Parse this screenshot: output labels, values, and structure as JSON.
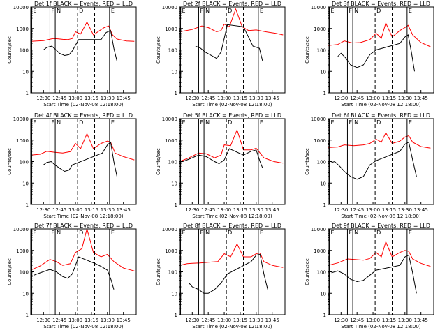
{
  "chart_data": {
    "type": "line",
    "y_scale": "log",
    "ylim": [
      1,
      10000
    ],
    "y_ticks": [
      1,
      10,
      100,
      1000,
      10000
    ],
    "y_tick_labels": [
      "1",
      "10",
      "100",
      "1000",
      "10000"
    ],
    "x_range": [
      "12:18",
      "13:57"
    ],
    "x_ticks": [
      "12:30",
      "12:45",
      "13:00",
      "13:15",
      "13:30",
      "13:45"
    ],
    "ylabel": "Counts/sec",
    "xlabel": "Start Time (02-Nov-08 12:18:00)",
    "legend": {
      "black": "Events",
      "red": "LLD"
    },
    "colors": {
      "events": "#000000",
      "lld": "#ff0000"
    },
    "markers": [
      {
        "label": "E",
        "time": "12:19",
        "style": "solid"
      },
      {
        "label": "F",
        "time": "12:36",
        "style": "solid"
      },
      {
        "label": "N",
        "time": "12:41",
        "style": "solid"
      },
      {
        "label": "D",
        "time": "13:02",
        "style": "dashed"
      },
      {
        "label": "",
        "time": "13:18",
        "style": "dashed"
      },
      {
        "label": "E",
        "time": "13:32",
        "style": "solid"
      }
    ],
    "panels": [
      {
        "title": "Det 1f BLACK = Events, RED = LLD",
        "lld": [
          [
            12.3,
            250
          ],
          [
            12.5,
            270
          ],
          [
            12.65,
            340
          ],
          [
            12.72,
            330
          ],
          [
            12.8,
            310
          ],
          [
            12.88,
            300
          ],
          [
            12.95,
            340
          ],
          [
            13.0,
            700
          ],
          [
            13.08,
            550
          ],
          [
            13.18,
            2000
          ],
          [
            13.28,
            500
          ],
          [
            13.38,
            800
          ],
          [
            13.45,
            1100
          ],
          [
            13.52,
            1300
          ],
          [
            13.58,
            500
          ],
          [
            13.65,
            320
          ],
          [
            13.8,
            260
          ],
          [
            13.92,
            250
          ]
        ],
        "events": [
          [
            12.5,
            100
          ],
          [
            12.55,
            130
          ],
          [
            12.63,
            150
          ],
          [
            12.68,
            110
          ],
          [
            12.75,
            70
          ],
          [
            12.83,
            55
          ],
          [
            12.9,
            60
          ],
          [
            12.95,
            90
          ],
          [
            13.05,
            300
          ],
          [
            13.4,
            300
          ],
          [
            13.48,
            650
          ],
          [
            13.55,
            800
          ],
          [
            13.6,
            120
          ],
          [
            13.65,
            30
          ]
        ]
      },
      {
        "title": "Det 2f BLACK = Events, RED = LLD",
        "lld": [
          [
            12.3,
            700
          ],
          [
            12.5,
            900
          ],
          [
            12.65,
            1300
          ],
          [
            12.75,
            1100
          ],
          [
            12.88,
            700
          ],
          [
            12.95,
            800
          ],
          [
            13.0,
            1600
          ],
          [
            13.08,
            1200
          ],
          [
            13.18,
            8000
          ],
          [
            13.28,
            1200
          ],
          [
            13.38,
            800
          ],
          [
            13.5,
            850
          ],
          [
            13.65,
            700
          ],
          [
            13.8,
            600
          ],
          [
            13.92,
            500
          ]
        ],
        "events": [
          [
            12.55,
            150
          ],
          [
            12.63,
            120
          ],
          [
            12.7,
            80
          ],
          [
            12.8,
            55
          ],
          [
            12.88,
            40
          ],
          [
            12.95,
            80
          ],
          [
            13.05,
            1500
          ],
          [
            13.3,
            1200
          ],
          [
            13.45,
            150
          ],
          [
            13.55,
            120
          ],
          [
            13.6,
            30
          ]
        ]
      },
      {
        "title": "Det 3f BLACK = Events, RED = LLD",
        "lld": [
          [
            12.3,
            160
          ],
          [
            12.45,
            180
          ],
          [
            12.55,
            260
          ],
          [
            12.68,
            210
          ],
          [
            12.8,
            220
          ],
          [
            12.95,
            300
          ],
          [
            13.05,
            600
          ],
          [
            13.13,
            350
          ],
          [
            13.2,
            1800
          ],
          [
            13.3,
            400
          ],
          [
            13.42,
            800
          ],
          [
            13.5,
            1100
          ],
          [
            13.55,
            1400
          ],
          [
            13.62,
            500
          ],
          [
            13.75,
            220
          ],
          [
            13.9,
            140
          ]
        ],
        "events": [
          [
            12.45,
            50
          ],
          [
            12.5,
            70
          ],
          [
            12.58,
            40
          ],
          [
            12.65,
            20
          ],
          [
            12.75,
            15
          ],
          [
            12.85,
            20
          ],
          [
            12.95,
            60
          ],
          [
            13.05,
            100
          ],
          [
            13.42,
            200
          ],
          [
            13.5,
            400
          ],
          [
            13.55,
            500
          ],
          [
            13.6,
            80
          ],
          [
            13.65,
            10
          ]
        ]
      },
      {
        "title": "Det 4f BLACK = Events, RED = LLD",
        "lld": [
          [
            12.3,
            200
          ],
          [
            12.45,
            220
          ],
          [
            12.55,
            300
          ],
          [
            12.68,
            270
          ],
          [
            12.8,
            250
          ],
          [
            12.92,
            290
          ],
          [
            13.0,
            700
          ],
          [
            13.08,
            400
          ],
          [
            13.18,
            2000
          ],
          [
            13.28,
            400
          ],
          [
            13.4,
            700
          ],
          [
            13.5,
            900
          ],
          [
            13.55,
            800
          ],
          [
            13.62,
            250
          ],
          [
            13.75,
            170
          ],
          [
            13.92,
            120
          ]
        ],
        "events": [
          [
            12.5,
            70
          ],
          [
            12.55,
            90
          ],
          [
            12.62,
            100
          ],
          [
            12.68,
            70
          ],
          [
            12.75,
            50
          ],
          [
            12.83,
            35
          ],
          [
            12.9,
            40
          ],
          [
            12.95,
            70
          ],
          [
            13.42,
            250
          ],
          [
            13.5,
            600
          ],
          [
            13.55,
            800
          ],
          [
            13.6,
            100
          ],
          [
            13.65,
            20
          ]
        ]
      },
      {
        "title": "Det 5f BLACK = Events, RED = LLD",
        "lld": [
          [
            12.3,
            100
          ],
          [
            12.45,
            150
          ],
          [
            12.6,
            250
          ],
          [
            12.72,
            230
          ],
          [
            12.85,
            150
          ],
          [
            12.95,
            200
          ],
          [
            13.0,
            600
          ],
          [
            13.1,
            550
          ],
          [
            13.2,
            3000
          ],
          [
            13.3,
            350
          ],
          [
            13.42,
            350
          ],
          [
            13.5,
            420
          ],
          [
            13.62,
            150
          ],
          [
            13.78,
            100
          ],
          [
            13.92,
            85
          ]
        ],
        "events": [
          [
            12.35,
            100
          ],
          [
            12.45,
            130
          ],
          [
            12.6,
            200
          ],
          [
            12.72,
            170
          ],
          [
            12.85,
            100
          ],
          [
            12.92,
            80
          ],
          [
            13.0,
            120
          ],
          [
            13.08,
            400
          ],
          [
            13.3,
            200
          ],
          [
            13.42,
            300
          ],
          [
            13.5,
            350
          ],
          [
            13.56,
            100
          ],
          [
            13.6,
            50
          ]
        ]
      },
      {
        "title": "Det 6f BLACK = Events, RED = LLD",
        "lld": [
          [
            12.3,
            450
          ],
          [
            12.45,
            480
          ],
          [
            12.55,
            600
          ],
          [
            12.7,
            550
          ],
          [
            12.85,
            600
          ],
          [
            12.95,
            700
          ],
          [
            13.05,
            1100
          ],
          [
            13.13,
            800
          ],
          [
            13.2,
            2200
          ],
          [
            13.3,
            700
          ],
          [
            13.42,
            900
          ],
          [
            13.5,
            1400
          ],
          [
            13.56,
            1600
          ],
          [
            13.62,
            800
          ],
          [
            13.75,
            500
          ],
          [
            13.9,
            420
          ]
        ],
        "events": [
          [
            12.35,
            90
          ],
          [
            12.4,
            100
          ],
          [
            12.48,
            60
          ],
          [
            12.55,
            35
          ],
          [
            12.65,
            20
          ],
          [
            12.75,
            15
          ],
          [
            12.85,
            20
          ],
          [
            12.95,
            70
          ],
          [
            13.05,
            110
          ],
          [
            13.42,
            300
          ],
          [
            13.5,
            650
          ],
          [
            13.56,
            800
          ],
          [
            13.62,
            120
          ],
          [
            13.68,
            20
          ]
        ]
      },
      {
        "title": "Det 7f BLACK = Events, RED = LLD",
        "lld": [
          [
            12.3,
            120
          ],
          [
            12.45,
            190
          ],
          [
            12.6,
            380
          ],
          [
            12.7,
            300
          ],
          [
            12.8,
            200
          ],
          [
            12.92,
            240
          ],
          [
            13.0,
            800
          ],
          [
            13.1,
            1200
          ],
          [
            13.18,
            10000
          ],
          [
            13.28,
            800
          ],
          [
            13.4,
            500
          ],
          [
            13.5,
            650
          ],
          [
            13.6,
            300
          ],
          [
            13.75,
            150
          ],
          [
            13.92,
            110
          ]
        ],
        "events": [
          [
            12.35,
            70
          ],
          [
            12.45,
            90
          ],
          [
            12.6,
            130
          ],
          [
            12.7,
            100
          ],
          [
            12.8,
            60
          ],
          [
            12.88,
            50
          ],
          [
            12.95,
            80
          ],
          [
            13.05,
            500
          ],
          [
            13.3,
            250
          ],
          [
            13.4,
            180
          ],
          [
            13.5,
            120
          ],
          [
            13.56,
            40
          ],
          [
            13.6,
            15
          ]
        ]
      },
      {
        "title": "Det 8f BLACK = Events, RED = LLD",
        "lld": [
          [
            12.3,
            200
          ],
          [
            12.42,
            240
          ],
          [
            12.5,
            250
          ],
          [
            12.62,
            260
          ],
          [
            12.75,
            280
          ],
          [
            12.9,
            300
          ],
          [
            13.0,
            700
          ],
          [
            13.1,
            500
          ],
          [
            13.2,
            2000
          ],
          [
            13.3,
            500
          ],
          [
            13.42,
            500
          ],
          [
            13.5,
            700
          ],
          [
            13.56,
            750
          ],
          [
            13.62,
            300
          ],
          [
            13.75,
            200
          ],
          [
            13.92,
            160
          ]
        ],
        "events": [
          [
            12.45,
            30
          ],
          [
            12.5,
            20
          ],
          [
            12.6,
            15
          ],
          [
            12.68,
            10
          ],
          [
            12.75,
            10
          ],
          [
            12.85,
            15
          ],
          [
            12.95,
            30
          ],
          [
            13.05,
            80
          ],
          [
            13.42,
            300
          ],
          [
            13.5,
            600
          ],
          [
            13.56,
            650
          ],
          [
            13.62,
            80
          ],
          [
            13.68,
            15
          ]
        ]
      },
      {
        "title": "Det 9f BLACK = Events, RED = LLD",
        "lld": [
          [
            12.3,
            200
          ],
          [
            12.45,
            260
          ],
          [
            12.6,
            400
          ],
          [
            12.72,
            380
          ],
          [
            12.85,
            350
          ],
          [
            12.95,
            420
          ],
          [
            13.05,
            800
          ],
          [
            13.13,
            500
          ],
          [
            13.2,
            2500
          ],
          [
            13.3,
            500
          ],
          [
            13.42,
            800
          ],
          [
            13.5,
            1000
          ],
          [
            13.56,
            900
          ],
          [
            13.62,
            400
          ],
          [
            13.75,
            250
          ],
          [
            13.9,
            180
          ]
        ],
        "events": [
          [
            12.35,
            90
          ],
          [
            12.45,
            110
          ],
          [
            12.55,
            80
          ],
          [
            12.65,
            45
          ],
          [
            12.75,
            35
          ],
          [
            12.85,
            40
          ],
          [
            12.95,
            70
          ],
          [
            13.05,
            120
          ],
          [
            13.42,
            200
          ],
          [
            13.5,
            500
          ],
          [
            13.56,
            600
          ],
          [
            13.62,
            90
          ],
          [
            13.68,
            10
          ]
        ]
      }
    ]
  }
}
